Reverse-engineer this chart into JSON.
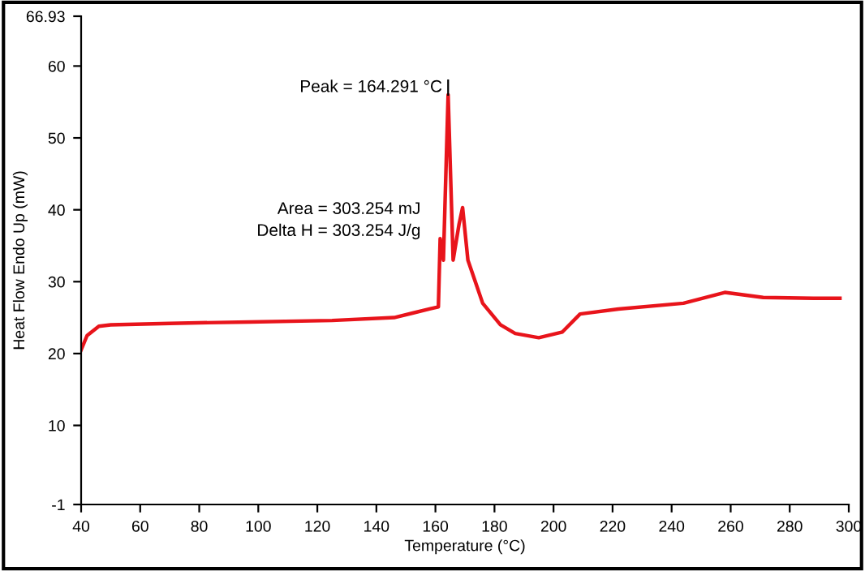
{
  "chart_data": {
    "type": "line",
    "xlabel": "Temperature (°C)",
    "ylabel": "Heat Flow Endo Up (mW)",
    "x": [
      40,
      42,
      46,
      50,
      70,
      97,
      125,
      146,
      158,
      161,
      161.6,
      162.7,
      164.3,
      166,
      168,
      169.2,
      171,
      173.5,
      176,
      182,
      187,
      195,
      203,
      209,
      222,
      244,
      258,
      271,
      288,
      297
    ],
    "series": [
      {
        "color": "#e8141b",
        "values": [
          20.5,
          22.5,
          23.8,
          24,
          24.2,
          24.4,
          24.6,
          25,
          26.2,
          26.5,
          36,
          33,
          56,
          33,
          38,
          40.3,
          33,
          30,
          27,
          24,
          22.8,
          22.2,
          23,
          25.5,
          26.2,
          27,
          28.5,
          27.8,
          27.7,
          27.7
        ]
      }
    ],
    "xlim": [
      40,
      300
    ],
    "xticks": [
      40,
      60,
      80,
      100,
      120,
      140,
      160,
      180,
      200,
      220,
      240,
      260,
      280,
      300
    ],
    "ylim": [
      -1,
      66.93
    ],
    "yticks": [
      -1,
      10,
      20,
      30,
      40,
      50,
      60,
      66.93
    ],
    "annotations": [
      {
        "text": "Peak = 164.291 °C",
        "x": 164.3,
        "y": 56
      },
      "Area = 303.254 mJ\nDelta H = 303.254 J/g"
    ],
    "grid": false,
    "legend": false
  }
}
